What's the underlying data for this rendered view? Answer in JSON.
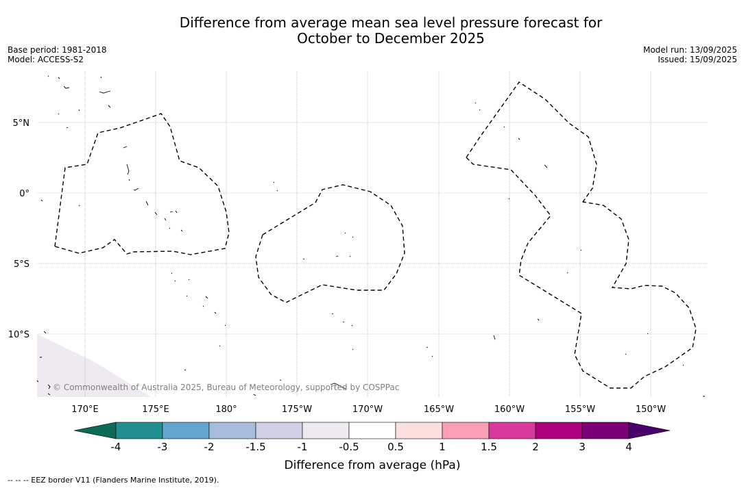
{
  "title": {
    "line1": "Difference from average mean sea level pressure forecast for",
    "line2": "October to December 2025"
  },
  "meta_left": {
    "base_period": "Base period: 1981-2018",
    "model": "Model: ACCESS-S2"
  },
  "meta_right": {
    "model_run": "Model run: 13/09/2025",
    "issued": "Issued: 15/09/2025"
  },
  "map": {
    "lat_labels": [
      "5°N",
      "0°",
      "5°S",
      "10°S"
    ],
    "lon_labels": [
      "170°E",
      "175°E",
      "180°",
      "175°W",
      "170°W",
      "165°W",
      "160°W",
      "155°W",
      "150°W"
    ],
    "copyright": "© Commonwealth of Australia 2025, Bureau of Meteorology, supported by COSPPac",
    "region_anomaly_hpa": "-0.5 to -1 (southwest corner)"
  },
  "colorbar": {
    "title": "Difference from average (hPa)",
    "ticks": [
      "-4",
      "-3",
      "-2",
      "-1.5",
      "-1",
      "-0.5",
      "0.5",
      "1",
      "1.5",
      "2",
      "3",
      "4"
    ],
    "colors": [
      "#1f8f8f",
      "#64a5cf",
      "#a7bcdc",
      "#cfd0e6",
      "#efe9f1",
      "#ffffff",
      "#fde0dd",
      "#f9a0b5",
      "#d9399c",
      "#ae017e",
      "#7a0177"
    ],
    "extend_low_color": "#0b6b57",
    "extend_high_color": "#49006a"
  },
  "footer": "--  --  -- EEZ border V11 (Flanders Marine Institute, 2019)."
}
